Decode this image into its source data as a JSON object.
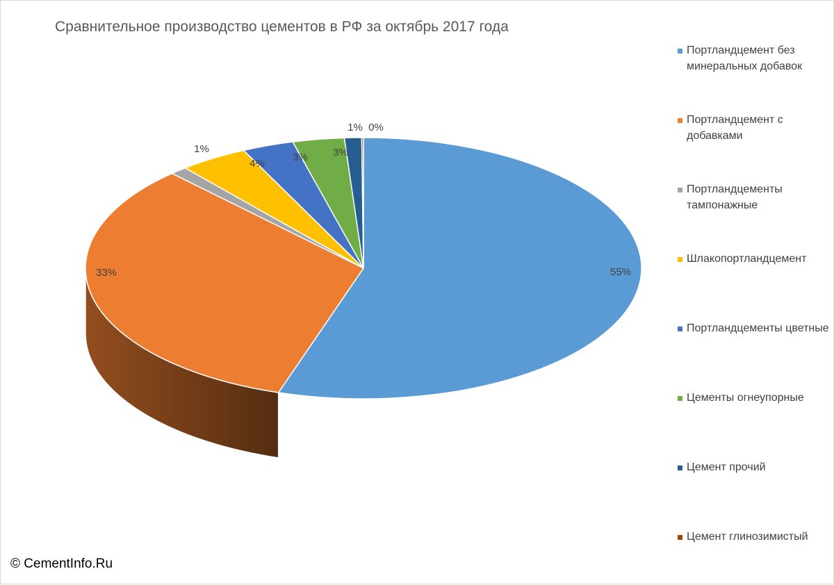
{
  "chart_data": {
    "type": "pie",
    "title": "Сравнительное производство цементов в РФ за октябрь 2017 года",
    "series": [
      {
        "name": "Портландцемент без минеральных добавок",
        "label": "55%",
        "value": 55,
        "color": "#5B9BD5"
      },
      {
        "name": "Портландцемент с добавками",
        "label": "33%",
        "value": 33,
        "color": "#ED7D31"
      },
      {
        "name": "Портландцементы тампонажные",
        "label": "1%",
        "value": 1,
        "color": "#A5A5A5"
      },
      {
        "name": "Шлакопортландцемент",
        "label": "4%",
        "value": 4,
        "color": "#FFC000"
      },
      {
        "name": "Портландцементы цветные",
        "label": "3%",
        "value": 3,
        "color": "#4472C4"
      },
      {
        "name": "Цементы огнеупорные",
        "label": "3%",
        "value": 3,
        "color": "#70AD47"
      },
      {
        "name": "Цемент прочий",
        "label": "1%",
        "value": 1,
        "color": "#255E91"
      },
      {
        "name": "Цемент глинозимистый",
        "label": "0%",
        "value": 0.1,
        "color": "#9E480E"
      }
    ],
    "legend_position": "right"
  },
  "copyright": "© CementInfo.Ru"
}
